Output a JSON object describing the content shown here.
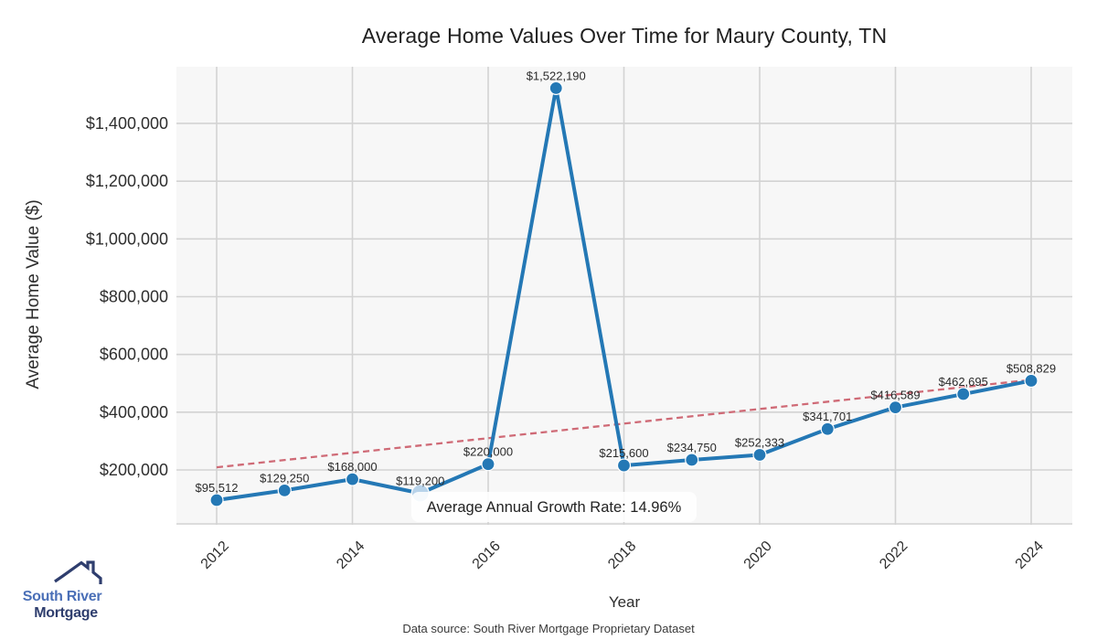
{
  "title": "Average Home Values Over Time for Maury County, TN",
  "chart_data": {
    "type": "line",
    "title": "Average Home Values Over Time for Maury County, TN",
    "x": [
      2012,
      2013,
      2014,
      2015,
      2016,
      2017,
      2018,
      2019,
      2020,
      2021,
      2022,
      2023,
      2024
    ],
    "values": [
      95512,
      129250,
      168000,
      119200,
      220000,
      1522190,
      215600,
      234750,
      252333,
      341701,
      416589,
      462695,
      508829
    ],
    "point_labels": [
      "$95,512",
      "$129,250",
      "$168,000",
      "$119,200",
      "$220,000",
      "$1,522,190",
      "$215,600",
      "$234,750",
      "$252,333",
      "$341,701",
      "$416,589",
      "$462,695",
      "$508,829"
    ],
    "xlabel": "Year",
    "ylabel": "Average Home Value ($)",
    "x_ticks": [
      2012,
      2014,
      2016,
      2018,
      2020,
      2022,
      2024
    ],
    "y_ticks": {
      "values": [
        200000,
        400000,
        600000,
        800000,
        1000000,
        1200000,
        1400000
      ],
      "labels": [
        "$200,000",
        "$400,000",
        "$600,000",
        "$800,000",
        "$1,000,000",
        "$1,200,000",
        "$1,400,000"
      ]
    },
    "ylim": [
      0,
      1600000
    ],
    "grid": true,
    "legend": "none",
    "trend_line": {
      "type": "linear_regression",
      "style": "dashed",
      "start_value": 209000,
      "end_value": 512000
    },
    "annotation": "Average Annual Growth Rate: 14.96%",
    "annotation_covers_point_index": 3,
    "colors": {
      "line": "#2478b5",
      "muted_point": "#b8d3ea",
      "trend": "#cf6a76",
      "plot_bg": "#f7f7f7",
      "grid": "#d3d3d3",
      "label_text": "#2b2b2b",
      "tick_text": "#2e2e2e",
      "annotation_text": "#222222"
    }
  },
  "footer": {
    "source": "Data source: South River Mortgage Proprietary Dataset"
  },
  "logo": {
    "line1": "South River",
    "line2": "Mortgage",
    "colors": {
      "line1": "#4a6fb7",
      "line2": "#2f3e6e",
      "roof": "#2f3e6e"
    }
  }
}
